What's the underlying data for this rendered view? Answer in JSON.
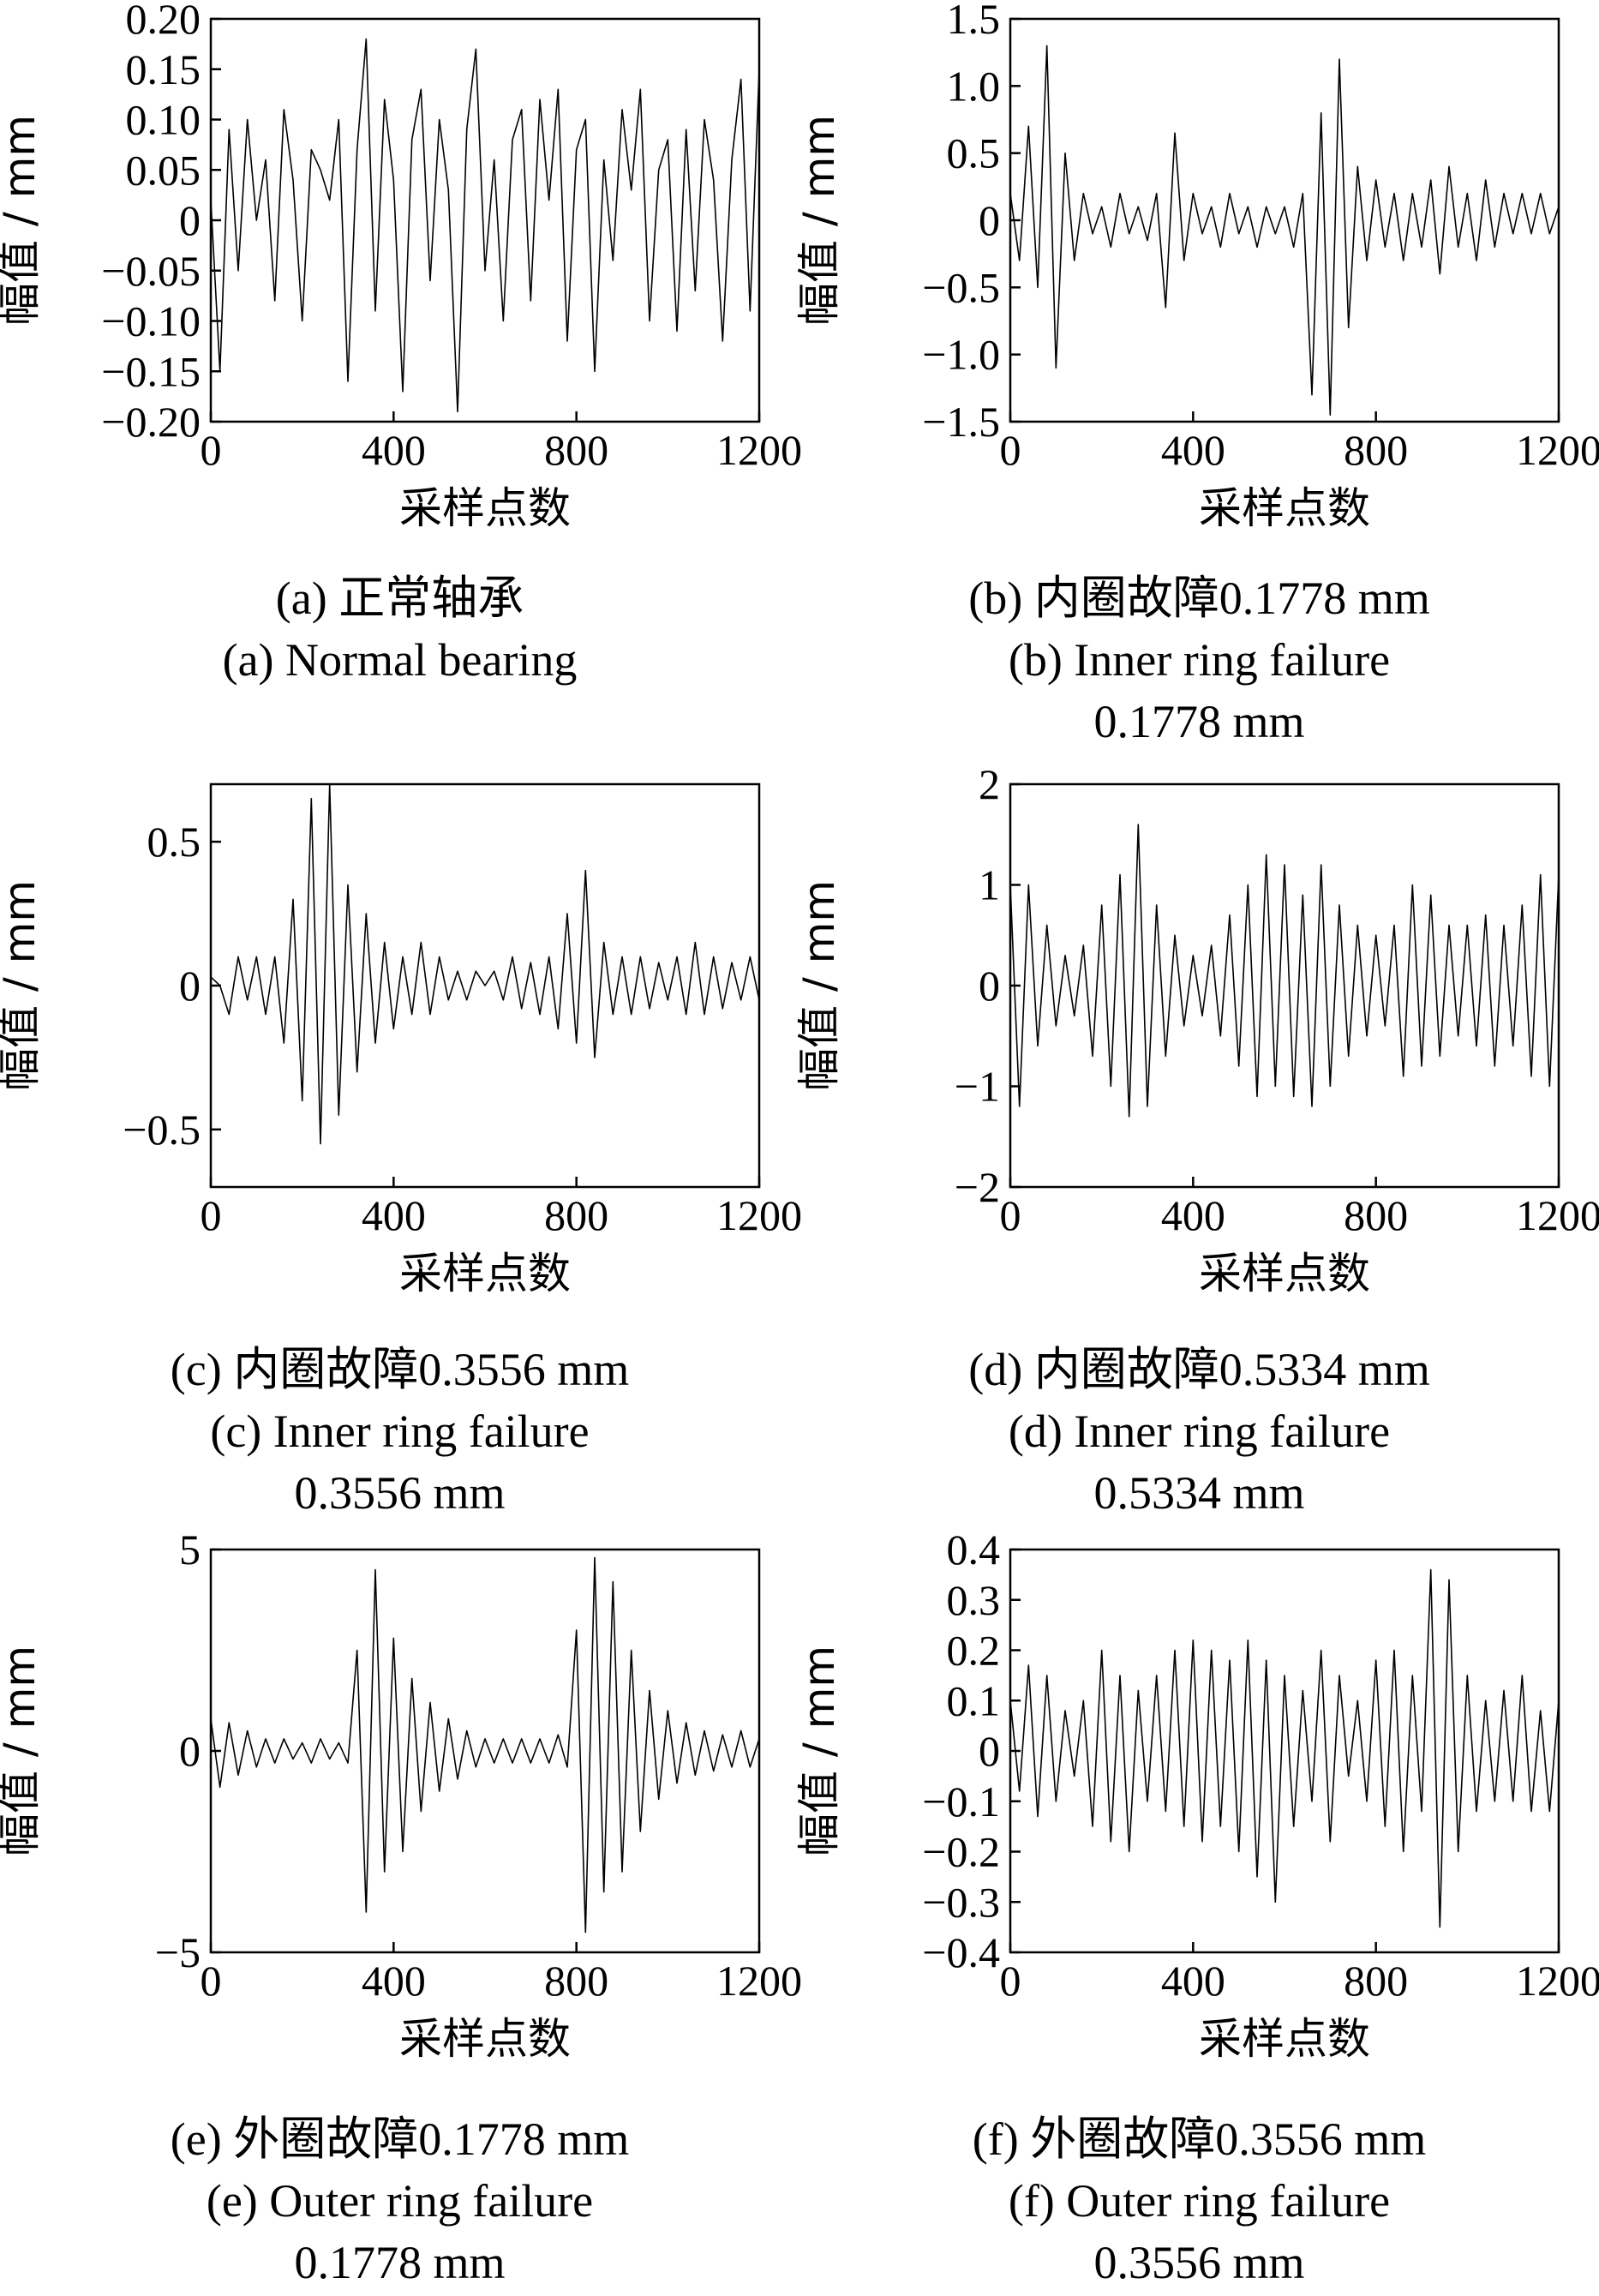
{
  "chart_data": [
    {
      "id": "a",
      "type": "line",
      "xlabel": "采样点数",
      "ylabel": "幅值 / mm",
      "xlim": [
        0,
        1200
      ],
      "ylim": [
        -0.2,
        0.2
      ],
      "xticks": [
        0,
        400,
        800,
        1200
      ],
      "yticks": [
        -0.2,
        -0.15,
        -0.1,
        -0.05,
        0,
        0.05,
        0.1,
        0.15,
        0.2
      ],
      "ytick_labels": [
        "−0.20",
        "−0.15",
        "−0.10",
        "−0.05",
        "0",
        "0.05",
        "0.10",
        "0.15",
        "0.20"
      ],
      "caption_zh": "(a)  正常轴承",
      "caption_en": "(a)  Normal bearing",
      "caption_en2": "",
      "x_step": 20,
      "y": [
        0.02,
        -0.15,
        0.09,
        -0.05,
        0.1,
        0.0,
        0.06,
        -0.08,
        0.11,
        0.04,
        -0.1,
        0.07,
        0.05,
        0.02,
        0.1,
        -0.16,
        0.07,
        0.18,
        -0.09,
        0.12,
        0.04,
        -0.17,
        0.08,
        0.13,
        -0.06,
        0.1,
        0.03,
        -0.19,
        0.09,
        0.17,
        -0.05,
        0.06,
        -0.1,
        0.08,
        0.11,
        -0.08,
        0.12,
        0.02,
        0.13,
        -0.12,
        0.07,
        0.1,
        -0.15,
        0.06,
        -0.04,
        0.11,
        0.03,
        0.13,
        -0.1,
        0.05,
        0.08,
        -0.11,
        0.09,
        -0.07,
        0.1,
        0.04,
        -0.12,
        0.06,
        0.14,
        -0.09,
        0.15
      ]
    },
    {
      "id": "b",
      "type": "line",
      "xlabel": "采样点数",
      "ylabel": "幅值 / mm",
      "xlim": [
        0,
        1200
      ],
      "ylim": [
        -1.5,
        1.5
      ],
      "xticks": [
        0,
        400,
        800,
        1200
      ],
      "yticks": [
        -1.5,
        -1.0,
        -0.5,
        0,
        0.5,
        1.0,
        1.5
      ],
      "ytick_labels": [
        "−1.5",
        "−1.0",
        "−0.5",
        "0",
        "0.5",
        "1.0",
        "1.5"
      ],
      "caption_zh": "(b)  内圈故障0.1778 mm",
      "caption_en": "(b)  Inner ring failure",
      "caption_en2": "0.1778 mm",
      "x_step": 20,
      "y": [
        0.2,
        -0.3,
        0.7,
        -0.5,
        1.3,
        -1.1,
        0.5,
        -0.3,
        0.2,
        -0.1,
        0.1,
        -0.2,
        0.2,
        -0.1,
        0.1,
        -0.15,
        0.2,
        -0.65,
        0.65,
        -0.3,
        0.2,
        -0.1,
        0.1,
        -0.2,
        0.2,
        -0.1,
        0.1,
        -0.2,
        0.1,
        -0.1,
        0.1,
        -0.2,
        0.2,
        -1.3,
        0.8,
        -1.45,
        1.2,
        -0.8,
        0.4,
        -0.3,
        0.3,
        -0.2,
        0.2,
        -0.3,
        0.2,
        -0.2,
        0.3,
        -0.4,
        0.4,
        -0.2,
        0.2,
        -0.3,
        0.3,
        -0.2,
        0.2,
        -0.1,
        0.2,
        -0.1,
        0.2,
        -0.1,
        0.1
      ]
    },
    {
      "id": "c",
      "type": "line",
      "xlabel": "采样点数",
      "ylabel": "幅值 / mm",
      "xlim": [
        0,
        1200
      ],
      "ylim": [
        -0.7,
        0.7
      ],
      "xticks": [
        0,
        400,
        800,
        1200
      ],
      "yticks": [
        -0.5,
        0,
        0.5
      ],
      "ytick_labels": [
        "−0.5",
        "0",
        "0.5"
      ],
      "caption_zh": "(c)  内圈故障0.3556 mm",
      "caption_en": "(c)  Inner ring failure",
      "caption_en2": "0.3556 mm",
      "x_step": 20,
      "y": [
        0.03,
        0.0,
        -0.1,
        0.1,
        -0.05,
        0.1,
        -0.1,
        0.1,
        -0.2,
        0.3,
        -0.4,
        0.65,
        -0.55,
        0.7,
        -0.45,
        0.35,
        -0.3,
        0.25,
        -0.2,
        0.15,
        -0.15,
        0.1,
        -0.1,
        0.15,
        -0.1,
        0.1,
        -0.05,
        0.05,
        -0.05,
        0.05,
        0.0,
        0.05,
        -0.05,
        0.1,
        -0.08,
        0.08,
        -0.1,
        0.1,
        -0.15,
        0.25,
        -0.2,
        0.4,
        -0.25,
        0.15,
        -0.1,
        0.1,
        -0.1,
        0.1,
        -0.08,
        0.08,
        -0.05,
        0.1,
        -0.1,
        0.15,
        -0.1,
        0.1,
        -0.08,
        0.08,
        -0.05,
        0.1,
        -0.05
      ]
    },
    {
      "id": "d",
      "type": "line",
      "xlabel": "采样点数",
      "ylabel": "幅值 / mm",
      "xlim": [
        0,
        1200
      ],
      "ylim": [
        -2,
        2
      ],
      "xticks": [
        0,
        400,
        800,
        1200
      ],
      "yticks": [
        -2,
        -1,
        0,
        1,
        2
      ],
      "ytick_labels": [
        "−2",
        "−1",
        "0",
        "1",
        "2"
      ],
      "caption_zh": "(d)  内圈故障0.5334 mm",
      "caption_en": "(d)  Inner ring failure",
      "caption_en2": "0.5334 mm",
      "x_step": 20,
      "y": [
        1.0,
        -1.2,
        1.0,
        -0.6,
        0.6,
        -0.4,
        0.3,
        -0.3,
        0.4,
        -0.7,
        0.8,
        -1.0,
        1.1,
        -1.3,
        1.6,
        -1.2,
        0.8,
        -0.7,
        0.5,
        -0.4,
        0.3,
        -0.3,
        0.4,
        -0.5,
        0.7,
        -0.8,
        1.0,
        -1.1,
        1.3,
        -1.0,
        1.2,
        -1.1,
        0.9,
        -1.2,
        1.2,
        -1.0,
        0.8,
        -0.7,
        0.6,
        -0.5,
        0.5,
        -0.4,
        0.6,
        -0.9,
        1.0,
        -0.8,
        0.9,
        -0.7,
        0.6,
        -0.5,
        0.6,
        -0.6,
        0.7,
        -0.8,
        0.6,
        -0.6,
        0.8,
        -0.9,
        1.1,
        -1.0,
        1.1
      ]
    },
    {
      "id": "e",
      "type": "line",
      "xlabel": "采样点数",
      "ylabel": "幅值 / mm",
      "xlim": [
        0,
        1200
      ],
      "ylim": [
        -5,
        5
      ],
      "xticks": [
        0,
        400,
        800,
        1200
      ],
      "yticks": [
        -5,
        0,
        5
      ],
      "ytick_labels": [
        "−5",
        "0",
        "5"
      ],
      "caption_zh": "(e)  外圈故障0.1778 mm",
      "caption_en": "(e)  Outer ring failure",
      "caption_en2": "0.1778 mm",
      "x_step": 20,
      "y": [
        0.8,
        -0.9,
        0.7,
        -0.6,
        0.5,
        -0.4,
        0.3,
        -0.3,
        0.3,
        -0.2,
        0.2,
        -0.3,
        0.3,
        -0.2,
        0.2,
        -0.3,
        2.5,
        -4.0,
        4.5,
        -3.0,
        2.8,
        -2.5,
        1.8,
        -1.5,
        1.2,
        -1.0,
        0.8,
        -0.7,
        0.5,
        -0.4,
        0.3,
        -0.3,
        0.3,
        -0.3,
        0.3,
        -0.3,
        0.3,
        -0.3,
        0.4,
        -0.4,
        3.0,
        -4.5,
        4.8,
        -3.5,
        4.2,
        -3.0,
        2.5,
        -2.0,
        1.5,
        -1.2,
        1.0,
        -0.8,
        0.7,
        -0.6,
        0.5,
        -0.5,
        0.4,
        -0.4,
        0.5,
        -0.4,
        0.3
      ]
    },
    {
      "id": "f",
      "type": "line",
      "xlabel": "采样点数",
      "ylabel": "幅值 / mm",
      "xlim": [
        0,
        1200
      ],
      "ylim": [
        -0.4,
        0.4
      ],
      "xticks": [
        0,
        400,
        800,
        1200
      ],
      "yticks": [
        -0.4,
        -0.3,
        -0.2,
        -0.1,
        0,
        0.1,
        0.2,
        0.3,
        0.4
      ],
      "ytick_labels": [
        "−0.4",
        "−0.3",
        "−0.2",
        "−0.1",
        "0",
        "0.1",
        "0.2",
        "0.3",
        "0.4"
      ],
      "caption_zh": "(f)  外圈故障0.3556 mm",
      "caption_en": "(f)  Outer ring failure",
      "caption_en2": "0.3556 mm",
      "x_step": 20,
      "y": [
        0.1,
        -0.08,
        0.17,
        -0.13,
        0.15,
        -0.1,
        0.08,
        -0.05,
        0.1,
        -0.15,
        0.2,
        -0.18,
        0.15,
        -0.2,
        0.12,
        -0.1,
        0.15,
        -0.12,
        0.2,
        -0.15,
        0.22,
        -0.18,
        0.2,
        -0.15,
        0.18,
        -0.2,
        0.22,
        -0.25,
        0.18,
        -0.3,
        0.15,
        -0.15,
        0.12,
        -0.1,
        0.2,
        -0.18,
        0.15,
        -0.05,
        0.1,
        -0.1,
        0.18,
        -0.15,
        0.2,
        -0.2,
        0.15,
        -0.12,
        0.36,
        -0.35,
        0.34,
        -0.2,
        0.15,
        -0.12,
        0.1,
        -0.1,
        0.12,
        -0.1,
        0.15,
        -0.12,
        0.08,
        -0.12,
        0.1
      ]
    }
  ]
}
